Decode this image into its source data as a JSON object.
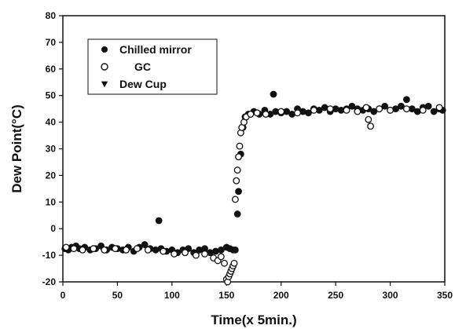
{
  "chart_data": {
    "type": "scatter",
    "title": "",
    "xlabel": "Time(x 5min.)",
    "ylabel": "Dew Point(°C)",
    "xlim": [
      0,
      350
    ],
    "ylim": [
      -20,
      80
    ],
    "xticks": [
      0,
      50,
      100,
      150,
      200,
      250,
      300,
      350
    ],
    "yticks": [
      -20,
      -10,
      0,
      10,
      20,
      30,
      40,
      50,
      60,
      70,
      80
    ],
    "grid": false,
    "legend_position": "top-left",
    "series": [
      {
        "name": "Chilled mirror",
        "marker": "filled-circle",
        "color": "#111111",
        "x": [
          2,
          5,
          8,
          12,
          15,
          20,
          25,
          30,
          35,
          40,
          45,
          50,
          55,
          60,
          65,
          70,
          75,
          80,
          85,
          88,
          90,
          95,
          100,
          105,
          110,
          115,
          120,
          125,
          130,
          135,
          140,
          145,
          150,
          153,
          156,
          158,
          160,
          161,
          163,
          165,
          167,
          170,
          175,
          180,
          185,
          190,
          193,
          195,
          200,
          205,
          210,
          215,
          220,
          225,
          230,
          235,
          240,
          245,
          250,
          255,
          260,
          265,
          270,
          275,
          280,
          285,
          290,
          295,
          300,
          305,
          310,
          315,
          320,
          325,
          330,
          335,
          340,
          345,
          348
        ],
        "y": [
          -7.5,
          -8,
          -7,
          -6.5,
          -7.5,
          -7,
          -8,
          -7.5,
          -6.5,
          -8,
          -7,
          -7.5,
          -8,
          -7,
          -8.5,
          -7,
          -6,
          -7.5,
          -8,
          3,
          -7.5,
          -8.5,
          -8,
          -9,
          -8,
          -7.5,
          -9,
          -8,
          -7.5,
          -9,
          -8.5,
          -8,
          -7,
          -7.5,
          -8,
          -8,
          5.5,
          14,
          28,
          38,
          42,
          43,
          44,
          43,
          44.5,
          43,
          50.5,
          44,
          43.5,
          44,
          43,
          45,
          44,
          43.5,
          45,
          44.5,
          45.5,
          44,
          45,
          44.5,
          45,
          46,
          45,
          44.5,
          45,
          44,
          45,
          46,
          44.5,
          45,
          46,
          48.5,
          45,
          44,
          45.5,
          46,
          44,
          45,
          44.5
        ]
      },
      {
        "name": "GC",
        "marker": "open-circle",
        "color": "#111111",
        "x": [
          3,
          10,
          18,
          28,
          38,
          48,
          58,
          68,
          78,
          92,
          102,
          112,
          122,
          130,
          138,
          142,
          145,
          148,
          150,
          151,
          152,
          153,
          154,
          155,
          156,
          157,
          158,
          159,
          160,
          161,
          162,
          163,
          164,
          166,
          168,
          172,
          178,
          186,
          200,
          215,
          230,
          245,
          260,
          270,
          278,
          280,
          282,
          290,
          300,
          315,
          330,
          345
        ],
        "y": [
          -7,
          -7.5,
          -8,
          -7.5,
          -8,
          -7.5,
          -8,
          -7.5,
          -8,
          -8.5,
          -9.5,
          -9,
          -10,
          -9.5,
          -11,
          -12,
          -10.5,
          -13,
          -19,
          -20,
          -18,
          -17,
          -16,
          -15,
          -14,
          -13,
          11,
          18,
          22,
          27,
          31,
          36,
          38,
          40,
          42,
          43,
          43.5,
          43,
          44,
          43.5,
          44.5,
          45,
          44.5,
          44,
          45.5,
          41,
          38.5,
          45,
          44.5,
          45,
          44.5,
          45.5
        ]
      },
      {
        "name": "Dew Cup",
        "marker": "filled-triangle-down",
        "color": "#111111",
        "x": [],
        "y": []
      }
    ]
  }
}
